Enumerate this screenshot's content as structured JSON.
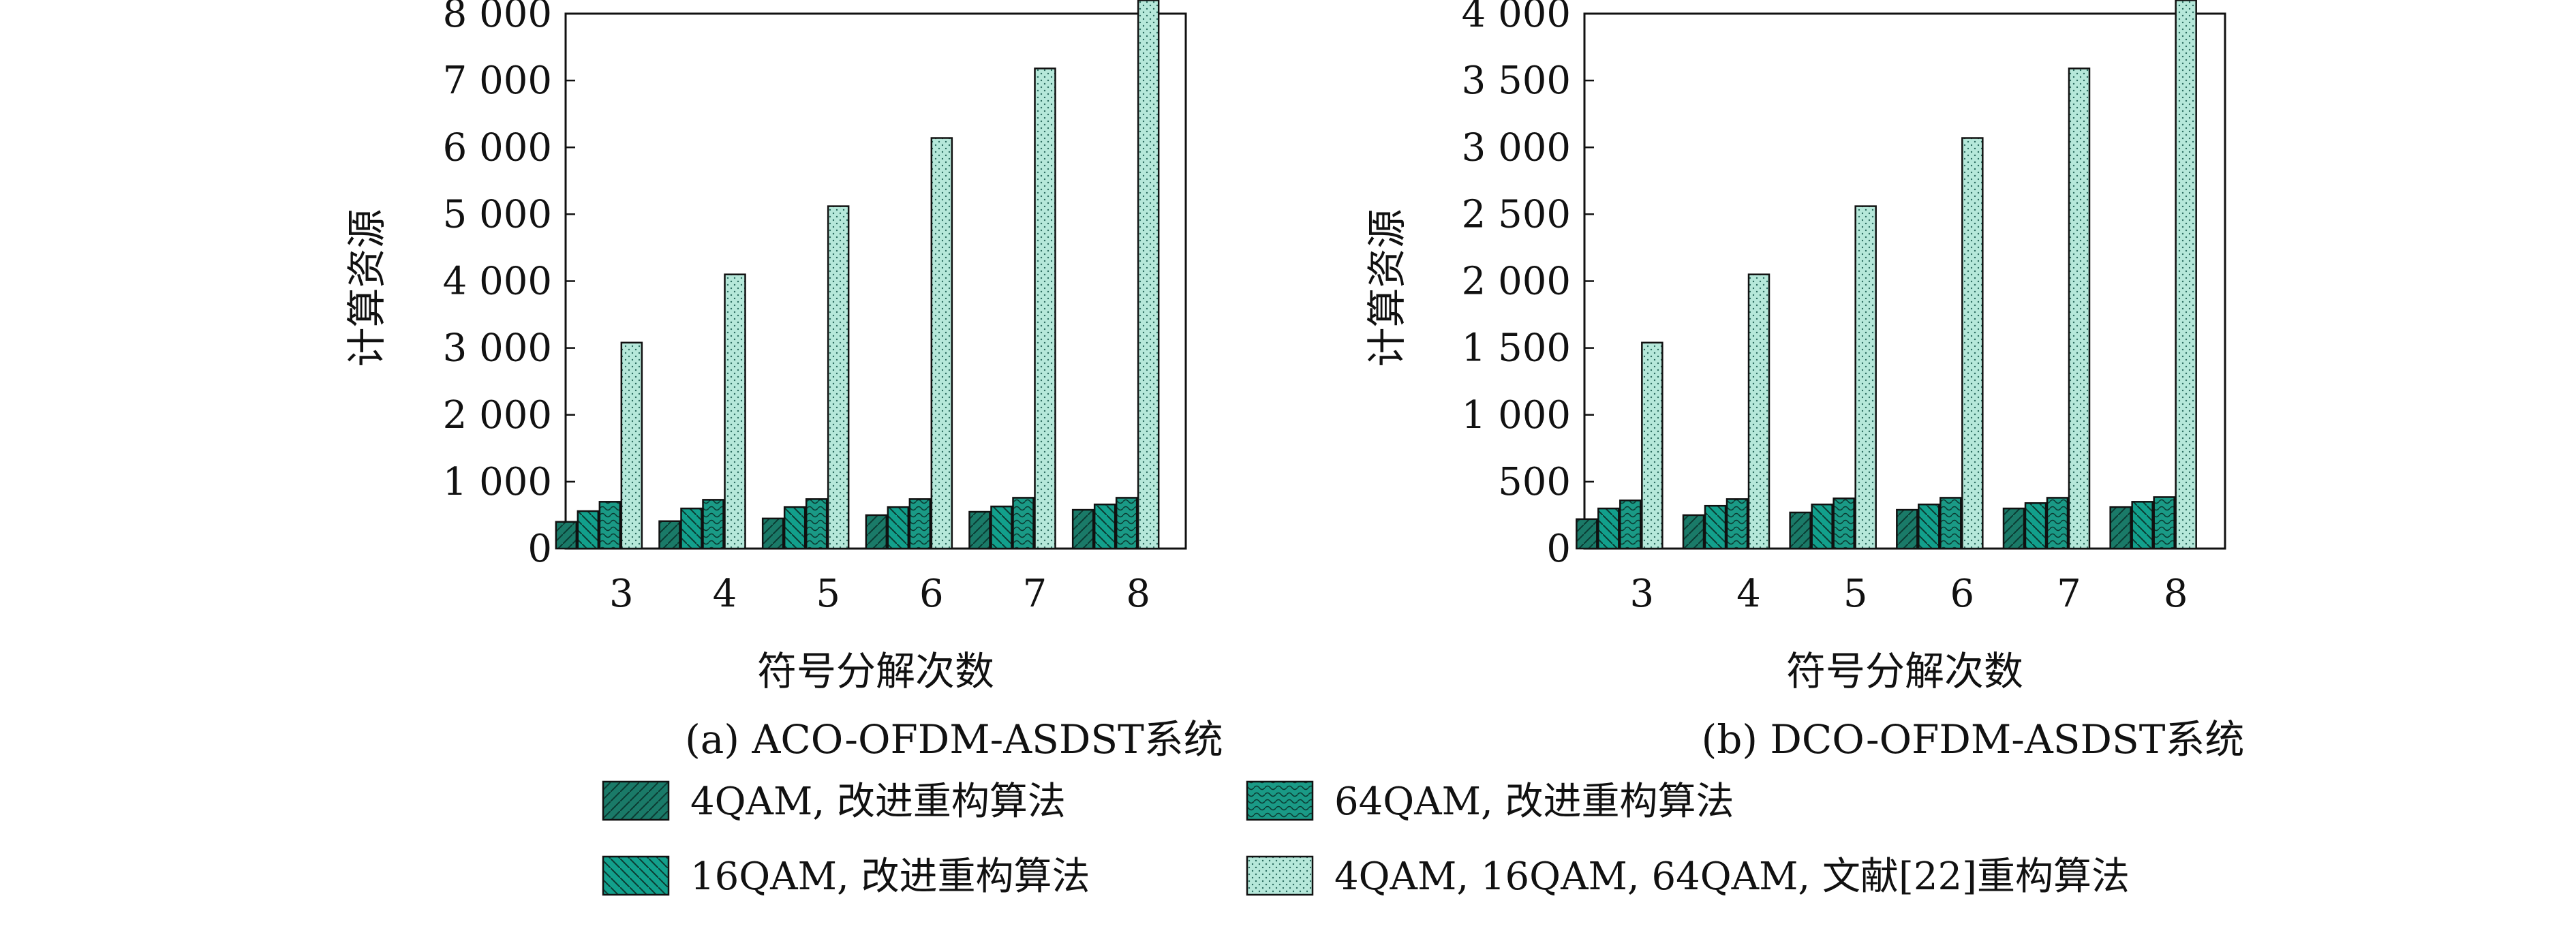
{
  "chart_data": [
    {
      "type": "bar",
      "caption": "(a) ACO-OFDM-ASDST系统",
      "xlabel": "符号分解次数",
      "ylabel": "计算资源",
      "categories": [
        "3",
        "4",
        "5",
        "6",
        "7",
        "8"
      ],
      "ylim": [
        0,
        8000
      ],
      "yticks": [
        0,
        1000,
        2000,
        3000,
        4000,
        5000,
        6000,
        7000,
        8000
      ],
      "ytick_labels": [
        "0",
        "1 000",
        "2 000",
        "3 000",
        "4 000",
        "5 000",
        "6 000",
        "7 000",
        "8 000"
      ],
      "series": [
        {
          "key": "s1",
          "values": [
            400,
            410,
            450,
            500,
            550,
            580
          ]
        },
        {
          "key": "s2",
          "values": [
            560,
            600,
            620,
            620,
            630,
            660
          ]
        },
        {
          "key": "s3",
          "values": [
            700,
            730,
            740,
            740,
            760,
            760
          ]
        },
        {
          "key": "s4",
          "values": [
            3080,
            4100,
            5120,
            6140,
            7180,
            8200
          ]
        }
      ]
    },
    {
      "type": "bar",
      "caption": "(b) DCO-OFDM-ASDST系统",
      "xlabel": "符号分解次数",
      "ylabel": "计算资源",
      "categories": [
        "3",
        "4",
        "5",
        "6",
        "7",
        "8"
      ],
      "ylim": [
        0,
        4000
      ],
      "yticks": [
        0,
        500,
        1000,
        1500,
        2000,
        2500,
        3000,
        3500,
        4000
      ],
      "ytick_labels": [
        "0",
        "500",
        "1 000",
        "1 500",
        "2 000",
        "2 500",
        "3 000",
        "3 500",
        "4 000"
      ],
      "series": [
        {
          "key": "s1",
          "values": [
            220,
            250,
            270,
            290,
            300,
            310
          ]
        },
        {
          "key": "s2",
          "values": [
            300,
            320,
            330,
            330,
            340,
            350
          ]
        },
        {
          "key": "s3",
          "values": [
            360,
            370,
            375,
            380,
            380,
            385
          ]
        },
        {
          "key": "s4",
          "values": [
            1540,
            2050,
            2560,
            3070,
            3590,
            4100
          ]
        }
      ]
    }
  ],
  "legend": [
    {
      "key": "s1",
      "label": "4QAM, 改进重构算法",
      "fill": "#1a7a68",
      "pattern": "diag-up"
    },
    {
      "key": "s3",
      "label": "64QAM, 改进重构算法",
      "fill": "#1a9a86",
      "pattern": "wave"
    },
    {
      "key": "s2",
      "label": "16QAM, 改进重构算法",
      "fill": "#12a08c",
      "pattern": "diag-down"
    },
    {
      "key": "s4",
      "label": "4QAM, 16QAM, 64QAM, 文献[22]重构算法",
      "fill": "#b6e8da",
      "pattern": "dots"
    }
  ],
  "colors": {
    "s1": "#1a7a68",
    "s2": "#12a08c",
    "s3": "#1a9a86",
    "s4": "#b6e8da"
  }
}
